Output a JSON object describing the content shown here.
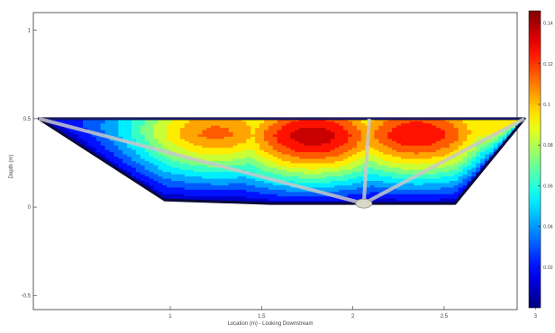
{
  "chart_data": {
    "type": "heatmap",
    "title": "",
    "xlabel": "Location (m) - Looking Downstream",
    "ylabel": "Depth (m)",
    "xlim": [
      0.25,
      2.9
    ],
    "ylim": [
      -0.58,
      1.1
    ],
    "x_ticks": [
      "1",
      "1.5",
      "2",
      "2.5",
      "3"
    ],
    "y_ticks": [
      "1",
      "0.5",
      "0",
      "-0.5"
    ],
    "grid": false,
    "colormap": "jet",
    "colorbar": {
      "range": [
        0,
        0.146
      ],
      "ticks": [
        "0.14",
        "0.12",
        "0.1",
        "0.08",
        "0.06",
        "0.04",
        "0.02"
      ]
    },
    "channel_cross_section": {
      "water_surface_depth": 0.5,
      "bed_profile": [
        {
          "x": 0.28,
          "y": 0.5
        },
        {
          "x": 0.97,
          "y": 0.04
        },
        {
          "x": 1.55,
          "y": 0.02
        },
        {
          "x": 2.06,
          "y": 0.02
        },
        {
          "x": 2.56,
          "y": 0.02
        },
        {
          "x": 2.94,
          "y": 0.5
        }
      ]
    },
    "support_struts": [
      {
        "from": [
          0.28,
          0.5
        ],
        "to": [
          2.06,
          0.02
        ]
      },
      {
        "from": [
          2.09,
          0.5
        ],
        "to": [
          2.06,
          0.02
        ]
      },
      {
        "from": [
          2.94,
          0.5
        ],
        "to": [
          2.06,
          0.02
        ]
      }
    ],
    "velocity_cores": [
      {
        "x": 1.78,
        "y": 0.36,
        "value": 0.145
      },
      {
        "x": 2.35,
        "y": 0.38,
        "value": 0.135
      },
      {
        "x": 1.25,
        "y": 0.4,
        "value": 0.115
      },
      {
        "x": 2.75,
        "y": 0.45,
        "value": 0.1
      }
    ]
  }
}
